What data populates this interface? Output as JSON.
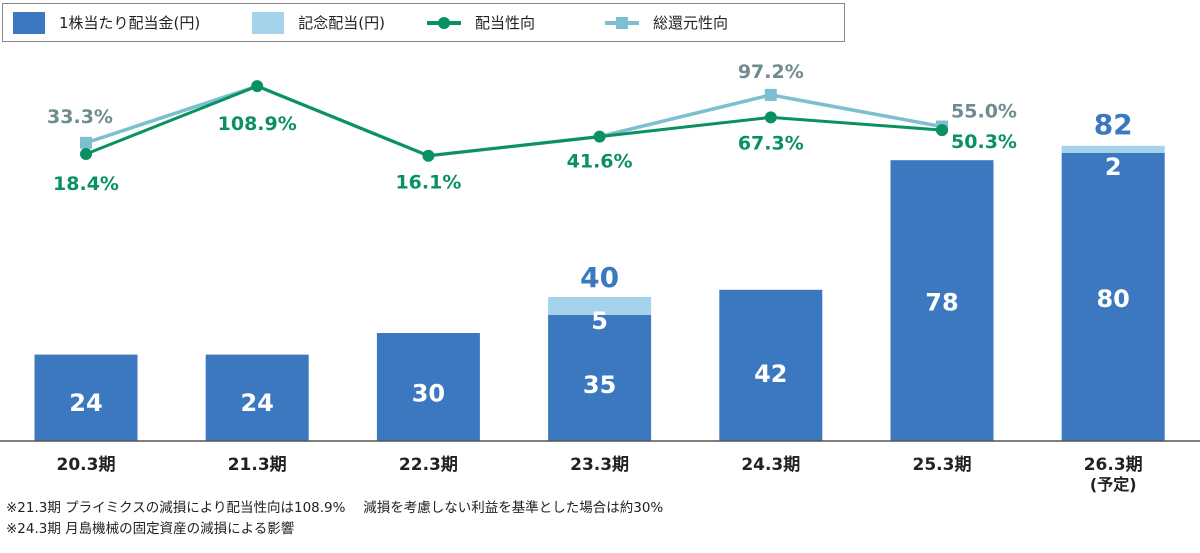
{
  "legend": {
    "dividend": "1株当たり配当金(円)",
    "commemorative": "記念配当(円)",
    "payout": "配当性向",
    "total_return": "総還元性向"
  },
  "colors": {
    "dividend": "#3b78bf",
    "commemorative": "#a6d3ec",
    "payout": "#0a9160",
    "total_return": "#7bbfd1",
    "total_return_label": "#6f8a90"
  },
  "chart_data": {
    "type": "bar+line",
    "categories": [
      "20.3期",
      "21.3期",
      "22.3期",
      "23.3期",
      "24.3期",
      "25.3期",
      "26.3期"
    ],
    "category_sub": [
      "",
      "",
      "",
      "",
      "",
      "",
      "(予定)"
    ],
    "series": [
      {
        "name": "1株当たり配当金(円)",
        "type": "stacked-bar",
        "values": [
          24,
          24,
          30,
          35,
          42,
          78,
          80
        ],
        "labels": [
          "24",
          "24",
          "30",
          "35",
          "42",
          "78",
          "80"
        ]
      },
      {
        "name": "記念配当(円)",
        "type": "stacked-bar",
        "values": [
          0,
          0,
          0,
          5,
          0,
          0,
          2
        ],
        "labels": [
          "",
          "",
          "",
          "5",
          "",
          "",
          "2"
        ]
      },
      {
        "name": "配当性向",
        "type": "line",
        "unit": "%",
        "values": [
          18.4,
          108.9,
          16.1,
          41.6,
          67.3,
          50.3,
          null
        ],
        "labels": [
          "18.4%",
          "108.9%",
          "16.1%",
          "41.6%",
          "67.3%",
          "50.3%",
          ""
        ]
      },
      {
        "name": "総還元性向",
        "type": "line",
        "unit": "%",
        "values": [
          33.3,
          108.9,
          16.1,
          41.6,
          97.2,
          55.0,
          null
        ],
        "labels": [
          "33.3%",
          "",
          "",
          "",
          "97.2%",
          "55.0%",
          ""
        ]
      }
    ],
    "totals": [
      "",
      "",
      "",
      "40",
      "",
      "",
      "82"
    ],
    "grid": false
  },
  "notes": [
    "※21.3期  プライミクスの減損により配当性向は108.9%　 減損を考慮しない利益を基準とした場合は約30%",
    "※24.3期  月島機械の固定資産の減損による影響"
  ]
}
